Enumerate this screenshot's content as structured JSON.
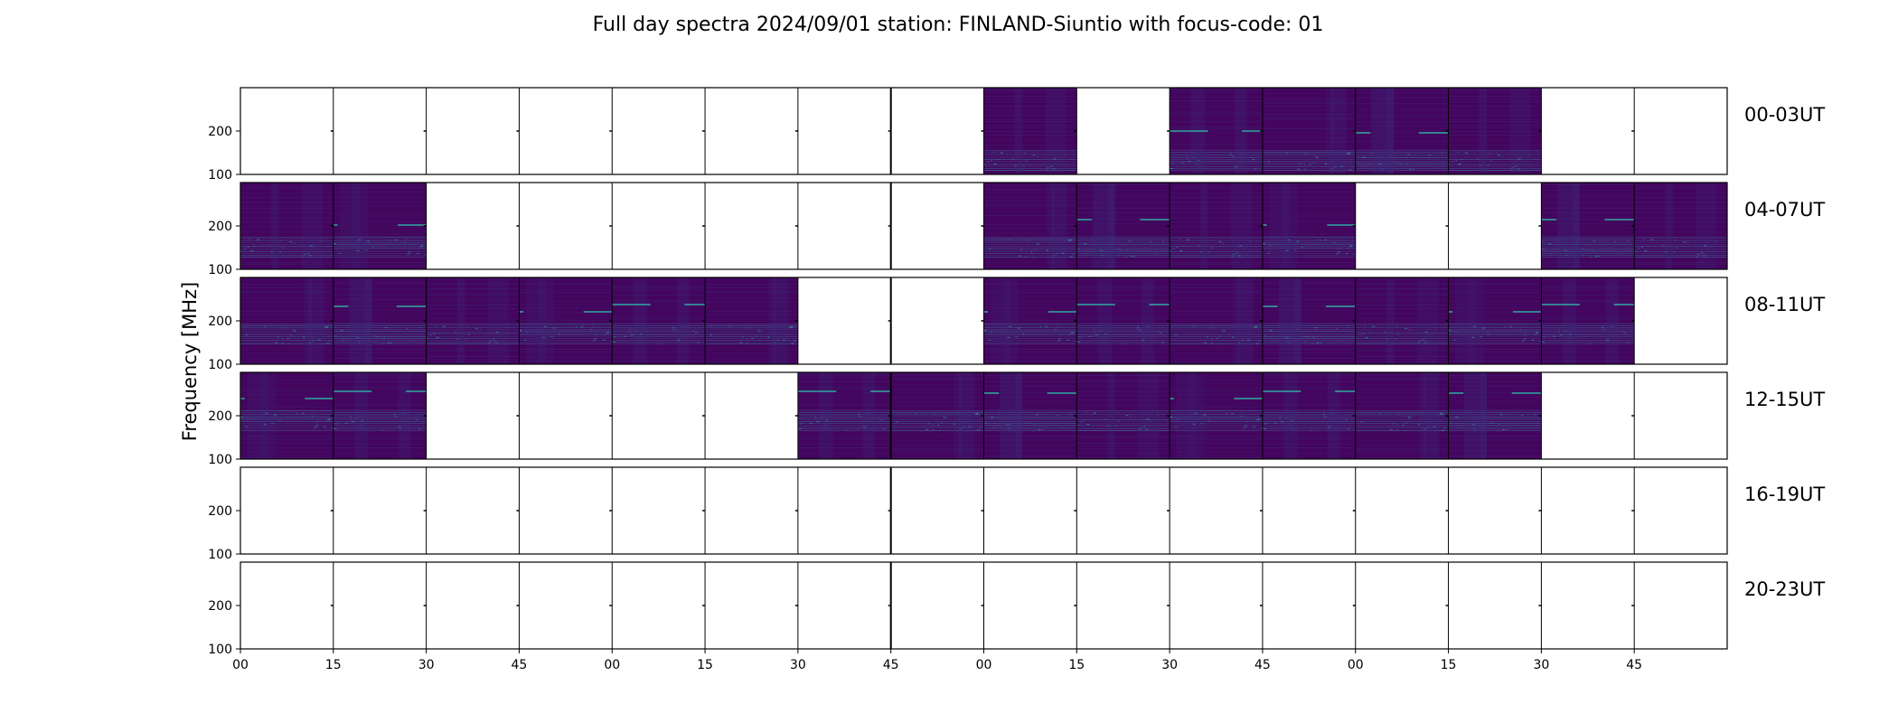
{
  "chart_data": {
    "type": "heatmap",
    "title": "Full day spectra 2024/09/01 station: FINLAND-Siuntio with focus-code: 01",
    "ylabel": "Frequency [MHz]",
    "xlabel": "",
    "y_ticks": [
      "100",
      "200"
    ],
    "x_ticks": [
      "00",
      "15",
      "30",
      "45",
      "00",
      "15",
      "30",
      "45",
      "00",
      "15",
      "30",
      "45",
      "00",
      "15",
      "30",
      "45"
    ],
    "ylim": [
      100,
      300
    ],
    "slot_minutes": 15,
    "rows": [
      {
        "label": "00-03UT",
        "filled": [
          0,
          0,
          0,
          0,
          0,
          0,
          0,
          0,
          1,
          0,
          1,
          1,
          1,
          1,
          0,
          0
        ]
      },
      {
        "label": "04-07UT",
        "filled": [
          1,
          1,
          0,
          0,
          0,
          0,
          0,
          0,
          1,
          1,
          1,
          1,
          0,
          0,
          1,
          1
        ]
      },
      {
        "label": "08-11UT",
        "filled": [
          1,
          1,
          1,
          1,
          1,
          1,
          0,
          0,
          1,
          1,
          1,
          1,
          1,
          1,
          1,
          0
        ]
      },
      {
        "label": "12-15UT",
        "filled": [
          1,
          1,
          0,
          0,
          0,
          0,
          1,
          1,
          1,
          1,
          1,
          1,
          1,
          1,
          0,
          0
        ]
      },
      {
        "label": "16-19UT",
        "filled": [
          0,
          0,
          0,
          0,
          0,
          0,
          0,
          0,
          0,
          0,
          0,
          0,
          0,
          0,
          0,
          0
        ]
      },
      {
        "label": "20-23UT",
        "filled": [
          0,
          0,
          0,
          0,
          0,
          0,
          0,
          0,
          0,
          0,
          0,
          0,
          0,
          0,
          0,
          0
        ]
      }
    ],
    "colors": {
      "background": "#44055e",
      "mid": "#3b2a7a",
      "band": "#3e6a9a",
      "bright": "#2fa9a0",
      "frame": "#000000"
    }
  }
}
